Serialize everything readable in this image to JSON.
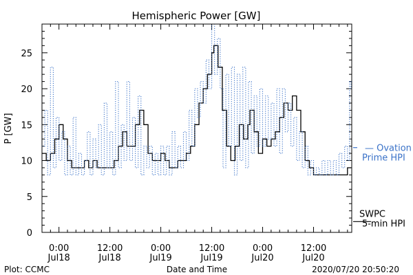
{
  "chart_data": {
    "type": "line",
    "title": "Hemispheric Power [GW]",
    "xlabel": "Date and Time",
    "ylabel": "P [GW]",
    "xlim": [
      "2020-07-17T20:00",
      "2020-07-20T21:00"
    ],
    "ylim": [
      0,
      29
    ],
    "yticks": [
      0,
      5,
      10,
      15,
      20,
      25
    ],
    "xticks": [
      {
        "x": "2020-07-18T00:00",
        "time": "0:00",
        "date": "Jul18"
      },
      {
        "x": "2020-07-18T12:00",
        "time": "12:00",
        "date": "Jul18"
      },
      {
        "x": "2020-07-19T00:00",
        "time": "0:00",
        "date": "Jul19"
      },
      {
        "x": "2020-07-19T12:00",
        "time": "12:00",
        "date": "Jul19"
      },
      {
        "x": "2020-07-20T00:00",
        "time": "0:00",
        "date": "Jul20"
      },
      {
        "x": "2020-07-20T12:00",
        "time": "12:00",
        "date": "Jul20"
      }
    ],
    "series": [
      {
        "name": "SWPC 5-min HPI",
        "style": "solid",
        "color": "#000000",
        "points": [
          [
            "2020-07-17T20:00",
            11
          ],
          [
            "2020-07-17T21:00",
            10
          ],
          [
            "2020-07-17T22:00",
            11
          ],
          [
            "2020-07-17T23:00",
            13
          ],
          [
            "2020-07-18T00:00",
            15
          ],
          [
            "2020-07-18T01:00",
            13
          ],
          [
            "2020-07-18T02:00",
            10
          ],
          [
            "2020-07-18T03:00",
            9
          ],
          [
            "2020-07-18T05:00",
            9
          ],
          [
            "2020-07-18T06:00",
            10
          ],
          [
            "2020-07-18T07:00",
            9
          ],
          [
            "2020-07-18T08:00",
            10
          ],
          [
            "2020-07-18T09:00",
            9
          ],
          [
            "2020-07-18T13:00",
            10
          ],
          [
            "2020-07-18T14:00",
            12
          ],
          [
            "2020-07-18T15:00",
            14
          ],
          [
            "2020-07-18T16:00",
            12
          ],
          [
            "2020-07-18T18:00",
            15
          ],
          [
            "2020-07-18T19:00",
            17
          ],
          [
            "2020-07-18T20:00",
            15
          ],
          [
            "2020-07-18T21:00",
            11
          ],
          [
            "2020-07-18T22:00",
            10
          ],
          [
            "2020-07-19T00:00",
            11
          ],
          [
            "2020-07-19T01:00",
            10
          ],
          [
            "2020-07-19T02:00",
            9
          ],
          [
            "2020-07-19T03:00",
            9
          ],
          [
            "2020-07-19T04:00",
            10
          ],
          [
            "2020-07-19T05:00",
            10
          ],
          [
            "2020-07-19T06:00",
            11
          ],
          [
            "2020-07-19T07:00",
            12
          ],
          [
            "2020-07-19T08:00",
            15
          ],
          [
            "2020-07-19T09:00",
            18
          ],
          [
            "2020-07-19T10:00",
            20
          ],
          [
            "2020-07-19T11:00",
            22
          ],
          [
            "2020-07-19T12:00",
            25
          ],
          [
            "2020-07-19T12:30",
            26
          ],
          [
            "2020-07-19T13:30",
            23
          ],
          [
            "2020-07-19T14:30",
            17
          ],
          [
            "2020-07-19T15:30",
            12
          ],
          [
            "2020-07-19T16:30",
            10
          ],
          [
            "2020-07-19T17:30",
            12
          ],
          [
            "2020-07-19T18:30",
            15
          ],
          [
            "2020-07-19T19:30",
            13
          ],
          [
            "2020-07-19T20:30",
            15
          ],
          [
            "2020-07-19T21:00",
            17
          ],
          [
            "2020-07-19T22:00",
            14
          ],
          [
            "2020-07-19T23:00",
            11
          ],
          [
            "2020-07-20T00:00",
            13
          ],
          [
            "2020-07-20T01:00",
            12
          ],
          [
            "2020-07-20T02:00",
            13
          ],
          [
            "2020-07-20T03:00",
            14
          ],
          [
            "2020-07-20T04:00",
            16
          ],
          [
            "2020-07-20T05:00",
            18
          ],
          [
            "2020-07-20T06:00",
            17
          ],
          [
            "2020-07-20T07:00",
            19
          ],
          [
            "2020-07-20T08:00",
            17
          ],
          [
            "2020-07-20T09:00",
            14
          ],
          [
            "2020-07-20T10:00",
            10
          ],
          [
            "2020-07-20T11:00",
            9
          ],
          [
            "2020-07-20T12:00",
            8
          ],
          [
            "2020-07-20T19:00",
            8
          ],
          [
            "2020-07-20T20:00",
            9
          ],
          [
            "2020-07-20T20:50",
            9
          ]
        ]
      },
      {
        "name": "Ovation Prime HPI",
        "style": "dotted",
        "color": "#3a72c8",
        "points": [
          [
            "2020-07-17T20:00",
            12
          ],
          [
            "2020-07-17T20:40",
            17
          ],
          [
            "2020-07-17T21:20",
            8
          ],
          [
            "2020-07-17T22:00",
            23
          ],
          [
            "2020-07-17T22:40",
            9
          ],
          [
            "2020-07-17T23:20",
            16
          ],
          [
            "2020-07-18T00:00",
            10
          ],
          [
            "2020-07-18T00:40",
            14
          ],
          [
            "2020-07-18T01:20",
            8
          ],
          [
            "2020-07-18T02:00",
            12
          ],
          [
            "2020-07-18T02:40",
            8
          ],
          [
            "2020-07-18T03:20",
            16
          ],
          [
            "2020-07-18T04:00",
            8
          ],
          [
            "2020-07-18T04:40",
            11
          ],
          [
            "2020-07-18T05:20",
            8
          ],
          [
            "2020-07-18T06:00",
            10
          ],
          [
            "2020-07-18T06:40",
            14
          ],
          [
            "2020-07-18T07:20",
            8
          ],
          [
            "2020-07-18T08:00",
            13
          ],
          [
            "2020-07-18T08:40",
            9
          ],
          [
            "2020-07-18T09:20",
            15
          ],
          [
            "2020-07-18T10:00",
            8
          ],
          [
            "2020-07-18T10:40",
            18
          ],
          [
            "2020-07-18T11:20",
            9
          ],
          [
            "2020-07-18T12:00",
            14
          ],
          [
            "2020-07-18T12:40",
            8
          ],
          [
            "2020-07-18T13:20",
            21
          ],
          [
            "2020-07-18T14:00",
            9
          ],
          [
            "2020-07-18T14:40",
            15
          ],
          [
            "2020-07-18T15:20",
            10
          ],
          [
            "2020-07-18T16:00",
            21
          ],
          [
            "2020-07-18T16:40",
            10
          ],
          [
            "2020-07-18T17:20",
            16
          ],
          [
            "2020-07-18T18:00",
            9
          ],
          [
            "2020-07-18T18:40",
            19
          ],
          [
            "2020-07-18T19:20",
            8
          ],
          [
            "2020-07-18T20:00",
            12
          ],
          [
            "2020-07-18T20:40",
            9
          ],
          [
            "2020-07-18T21:20",
            12
          ],
          [
            "2020-07-18T22:00",
            8
          ],
          [
            "2020-07-18T22:40",
            11
          ],
          [
            "2020-07-18T23:20",
            8
          ],
          [
            "2020-07-19T00:00",
            12
          ],
          [
            "2020-07-19T00:40",
            8
          ],
          [
            "2020-07-19T01:20",
            12
          ],
          [
            "2020-07-19T02:00",
            8
          ],
          [
            "2020-07-19T02:40",
            14
          ],
          [
            "2020-07-19T03:20",
            9
          ],
          [
            "2020-07-19T04:00",
            12
          ],
          [
            "2020-07-19T04:40",
            9
          ],
          [
            "2020-07-19T05:20",
            14
          ],
          [
            "2020-07-19T06:00",
            10
          ],
          [
            "2020-07-19T06:40",
            17
          ],
          [
            "2020-07-19T07:20",
            12
          ],
          [
            "2020-07-19T08:00",
            20
          ],
          [
            "2020-07-19T08:40",
            16
          ],
          [
            "2020-07-19T09:20",
            21
          ],
          [
            "2020-07-19T10:00",
            18
          ],
          [
            "2020-07-19T10:40",
            24
          ],
          [
            "2020-07-19T11:20",
            20
          ],
          [
            "2020-07-19T12:00",
            29
          ],
          [
            "2020-07-19T12:40",
            22
          ],
          [
            "2020-07-19T13:20",
            27
          ],
          [
            "2020-07-19T14:00",
            20
          ],
          [
            "2020-07-19T14:40",
            9
          ],
          [
            "2020-07-19T15:20",
            22
          ],
          [
            "2020-07-19T16:00",
            12
          ],
          [
            "2020-07-19T16:40",
            23
          ],
          [
            "2020-07-19T17:20",
            8
          ],
          [
            "2020-07-19T18:00",
            22
          ],
          [
            "2020-07-19T18:40",
            10
          ],
          [
            "2020-07-19T19:20",
            23
          ],
          [
            "2020-07-19T20:00",
            9
          ],
          [
            "2020-07-19T20:40",
            21
          ],
          [
            "2020-07-19T21:20",
            11
          ],
          [
            "2020-07-19T22:00",
            19
          ],
          [
            "2020-07-19T22:40",
            12
          ],
          [
            "2020-07-19T23:20",
            20
          ],
          [
            "2020-07-20T00:00",
            12
          ],
          [
            "2020-07-20T00:40",
            19
          ],
          [
            "2020-07-20T01:20",
            13
          ],
          [
            "2020-07-20T02:00",
            18
          ],
          [
            "2020-07-20T02:40",
            12
          ],
          [
            "2020-07-20T03:20",
            20
          ],
          [
            "2020-07-20T04:00",
            11
          ],
          [
            "2020-07-20T04:40",
            20
          ],
          [
            "2020-07-20T05:20",
            14
          ],
          [
            "2020-07-20T06:00",
            18
          ],
          [
            "2020-07-20T06:40",
            12
          ],
          [
            "2020-07-20T07:20",
            16
          ],
          [
            "2020-07-20T08:00",
            10
          ],
          [
            "2020-07-20T08:40",
            14
          ],
          [
            "2020-07-20T09:20",
            9
          ],
          [
            "2020-07-20T10:00",
            12
          ],
          [
            "2020-07-20T10:40",
            8
          ],
          [
            "2020-07-20T11:20",
            10
          ],
          [
            "2020-07-20T12:00",
            8
          ],
          [
            "2020-07-20T12:40",
            9
          ],
          [
            "2020-07-20T13:20",
            8
          ],
          [
            "2020-07-20T14:00",
            10
          ],
          [
            "2020-07-20T14:40",
            8
          ],
          [
            "2020-07-20T15:20",
            10
          ],
          [
            "2020-07-20T16:00",
            8
          ],
          [
            "2020-07-20T16:40",
            10
          ],
          [
            "2020-07-20T17:20",
            8
          ],
          [
            "2020-07-20T18:00",
            11
          ],
          [
            "2020-07-20T18:40",
            9
          ],
          [
            "2020-07-20T19:20",
            12
          ],
          [
            "2020-07-20T20:00",
            10
          ],
          [
            "2020-07-20T20:30",
            21
          ],
          [
            "2020-07-20T20:50",
            20
          ]
        ]
      }
    ],
    "legend": [
      {
        "lines": [
          "SWPC",
          "5-min HPI"
        ],
        "color": "#000000",
        "style": "solid",
        "value": 1.5
      },
      {
        "lines": [
          "— Ovation",
          "Prime HPI"
        ],
        "color": "#3a72c8",
        "style": "dash",
        "value": 11.8
      }
    ],
    "grid": false,
    "legend_position": "right"
  },
  "footer": {
    "plot_credit": "Plot: CCMC",
    "timestamp": "2020/07/20 20:50:20"
  }
}
